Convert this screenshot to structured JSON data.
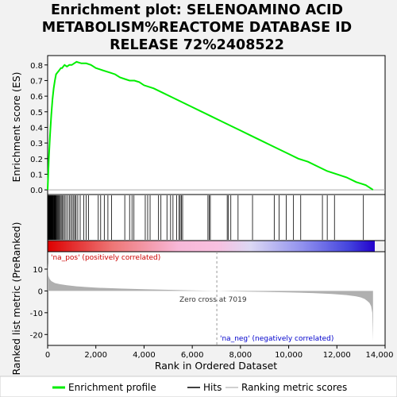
{
  "chart_data": {
    "type": "line",
    "title_lines": [
      "Enrichment plot: SELENOAMINO ACID",
      "METABOLISM%REACTOME DATABASE ID",
      "RELEASE 72%2408522"
    ],
    "top_panel": {
      "ylabel": "Enrichment score (ES)",
      "ylim": [
        -0.03,
        0.86
      ],
      "yticks": [
        "0.0",
        "0.1",
        "0.2",
        "0.3",
        "0.4",
        "0.5",
        "0.6",
        "0.7",
        "0.8"
      ],
      "es_curve": {
        "name": "Enrichment profile",
        "x": [
          0,
          50,
          100,
          150,
          200,
          250,
          300,
          350,
          400,
          450,
          500,
          550,
          600,
          650,
          700,
          800,
          900,
          1000,
          1100,
          1200,
          1400,
          1600,
          1800,
          2000,
          2200,
          2400,
          2600,
          2800,
          3000,
          3200,
          3400,
          3600,
          3800,
          4000,
          4400,
          4800,
          5200,
          5600,
          6000,
          6400,
          6800,
          7200,
          7600,
          8000,
          8400,
          8800,
          9200,
          9600,
          10000,
          10400,
          10800,
          11200,
          11600,
          12000,
          12400,
          12800,
          13000,
          13200,
          13300,
          13400,
          13500
        ],
        "y": [
          0.0,
          0.2,
          0.35,
          0.48,
          0.58,
          0.65,
          0.7,
          0.74,
          0.75,
          0.76,
          0.77,
          0.78,
          0.78,
          0.79,
          0.8,
          0.79,
          0.8,
          0.8,
          0.81,
          0.82,
          0.81,
          0.81,
          0.8,
          0.78,
          0.77,
          0.76,
          0.75,
          0.74,
          0.72,
          0.71,
          0.7,
          0.7,
          0.69,
          0.67,
          0.65,
          0.62,
          0.59,
          0.56,
          0.53,
          0.5,
          0.47,
          0.44,
          0.41,
          0.38,
          0.35,
          0.32,
          0.29,
          0.26,
          0.23,
          0.2,
          0.18,
          0.15,
          0.12,
          0.1,
          0.08,
          0.05,
          0.04,
          0.03,
          0.02,
          0.01,
          0.0
        ]
      }
    },
    "hits": {
      "name": "Hits",
      "x": [
        10,
        20,
        30,
        40,
        50,
        60,
        70,
        80,
        90,
        100,
        110,
        120,
        130,
        140,
        150,
        160,
        170,
        180,
        190,
        200,
        215,
        230,
        250,
        270,
        290,
        310,
        330,
        350,
        380,
        410,
        440,
        480,
        520,
        560,
        600,
        650,
        700,
        760,
        830,
        900,
        960,
        1020,
        1080,
        1130,
        1180,
        1250,
        1350,
        1500,
        1600,
        1700,
        2100,
        2200,
        2350,
        2500,
        2650,
        3200,
        3400,
        3500,
        3580,
        4050,
        4150,
        4250,
        4600,
        4700,
        4950,
        5100,
        5200,
        5350,
        5450,
        5500,
        5550,
        5600,
        6650,
        6700,
        6750,
        7450,
        7500,
        7600,
        7900,
        8500,
        9400,
        9600,
        9900,
        10200,
        10500,
        11400,
        11600,
        11900,
        13100
      ]
    },
    "bottom_panel": {
      "ylabel": "Ranked list metric (PreRanked)",
      "xlabel": "Rank in Ordered Dataset",
      "ylim": [
        -25,
        18
      ],
      "yticks": [
        "10",
        "0",
        "-10",
        "-20"
      ],
      "xlim": [
        0,
        14000
      ],
      "xticks": [
        "0",
        "2,000",
        "4,000",
        "6,000",
        "8,000",
        "10,000",
        "12,000",
        "14,000"
      ],
      "metric": {
        "name": "Ranking metric scores",
        "x": [
          0,
          30,
          80,
          150,
          300,
          500,
          800,
          1200,
          1600,
          2000,
          3000,
          4000,
          5000,
          6000,
          7019,
          8000,
          9000,
          10000,
          11000,
          11800,
          12400,
          12800,
          13000,
          13150,
          13250,
          13350,
          13420,
          13470,
          13500
        ],
        "y": [
          13,
          7,
          5.5,
          4.5,
          3.6,
          3.1,
          2.6,
          2.1,
          1.8,
          1.5,
          1.1,
          0.8,
          0.5,
          0.25,
          0.0,
          -0.25,
          -0.45,
          -0.7,
          -1.0,
          -1.4,
          -1.9,
          -2.5,
          -3.0,
          -3.7,
          -4.5,
          -5.5,
          -7.0,
          -10.0,
          -23.0
        ]
      },
      "zero_cross_label": "Zero cross at 7019",
      "zero_cross": 7019,
      "pos_label": "'na_pos' (positively correlated)",
      "neg_label": "'na_neg' (negatively correlated)"
    },
    "legend": [
      "Enrichment profile",
      "Hits",
      "Ranking metric scores"
    ],
    "colors": {
      "es": "#00ee00",
      "hit": "#000000",
      "metric": "#b0b0b0",
      "pos_text": "#cc0000",
      "neg_text": "#0000cc",
      "zero_line": "#aaaaaa"
    }
  }
}
